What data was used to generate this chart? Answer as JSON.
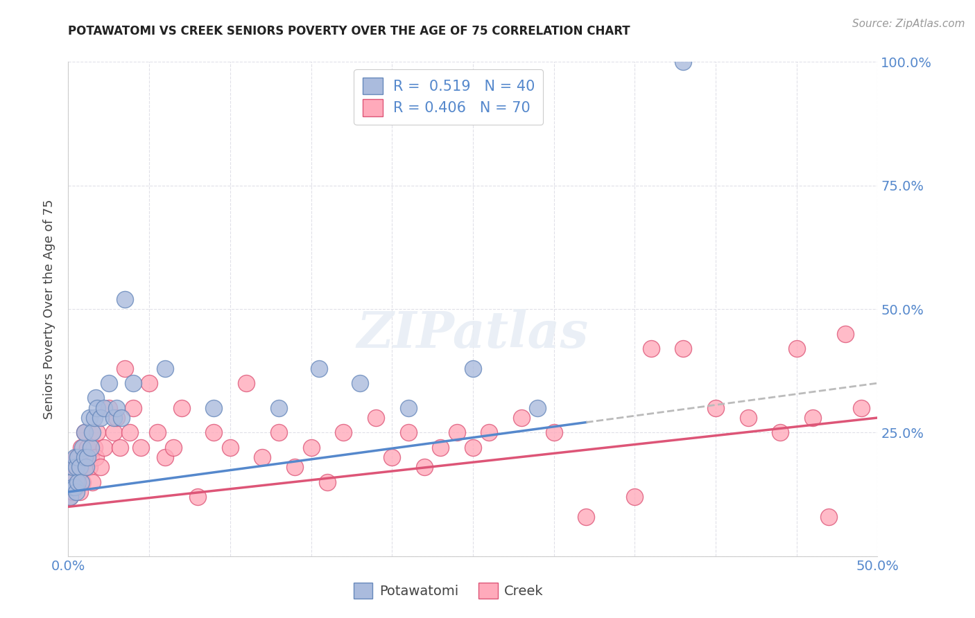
{
  "title": "POTAWATOMI VS CREEK SENIORS POVERTY OVER THE AGE OF 75 CORRELATION CHART",
  "source": "Source: ZipAtlas.com",
  "ylabel": "Seniors Poverty Over the Age of 75",
  "background_color": "#ffffff",
  "grid_color": "#e0e0e8",
  "potawatomi_color": "#aabbdd",
  "creek_color": "#ffaabb",
  "potawatomi_edge": "#6688bb",
  "creek_edge": "#dd5577",
  "trend_blue": "#5588cc",
  "trend_pink": "#dd5577",
  "trend_gray": "#bbbbbb",
  "R_potawatomi": 0.519,
  "N_potawatomi": 40,
  "R_creek": 0.406,
  "N_creek": 70,
  "xlim": [
    0.0,
    0.5
  ],
  "ylim": [
    0.0,
    1.0
  ],
  "potawatomi_x": [
    0.001,
    0.002,
    0.003,
    0.003,
    0.004,
    0.004,
    0.005,
    0.005,
    0.006,
    0.006,
    0.007,
    0.008,
    0.009,
    0.01,
    0.01,
    0.011,
    0.012,
    0.013,
    0.014,
    0.015,
    0.016,
    0.017,
    0.018,
    0.02,
    0.022,
    0.025,
    0.028,
    0.03,
    0.033,
    0.035,
    0.04,
    0.06,
    0.09,
    0.13,
    0.155,
    0.18,
    0.21,
    0.25,
    0.29,
    0.38
  ],
  "potawatomi_y": [
    0.12,
    0.15,
    0.14,
    0.18,
    0.14,
    0.2,
    0.13,
    0.18,
    0.15,
    0.2,
    0.18,
    0.15,
    0.22,
    0.2,
    0.25,
    0.18,
    0.2,
    0.28,
    0.22,
    0.25,
    0.28,
    0.32,
    0.3,
    0.28,
    0.3,
    0.35,
    0.28,
    0.3,
    0.28,
    0.52,
    0.35,
    0.38,
    0.3,
    0.3,
    0.38,
    0.35,
    0.3,
    0.38,
    0.3,
    1.0
  ],
  "creek_x": [
    0.001,
    0.002,
    0.003,
    0.004,
    0.005,
    0.005,
    0.006,
    0.006,
    0.007,
    0.007,
    0.008,
    0.008,
    0.009,
    0.01,
    0.01,
    0.011,
    0.012,
    0.013,
    0.014,
    0.015,
    0.016,
    0.017,
    0.018,
    0.02,
    0.022,
    0.025,
    0.028,
    0.03,
    0.032,
    0.035,
    0.038,
    0.04,
    0.045,
    0.05,
    0.055,
    0.06,
    0.065,
    0.07,
    0.08,
    0.09,
    0.1,
    0.11,
    0.12,
    0.13,
    0.14,
    0.15,
    0.16,
    0.17,
    0.19,
    0.2,
    0.21,
    0.22,
    0.23,
    0.24,
    0.25,
    0.26,
    0.28,
    0.3,
    0.32,
    0.35,
    0.36,
    0.38,
    0.4,
    0.42,
    0.44,
    0.45,
    0.46,
    0.47,
    0.48,
    0.49
  ],
  "creek_y": [
    0.12,
    0.15,
    0.13,
    0.18,
    0.14,
    0.2,
    0.15,
    0.18,
    0.13,
    0.2,
    0.18,
    0.22,
    0.15,
    0.2,
    0.25,
    0.18,
    0.22,
    0.18,
    0.2,
    0.15,
    0.22,
    0.2,
    0.25,
    0.18,
    0.22,
    0.3,
    0.25,
    0.28,
    0.22,
    0.38,
    0.25,
    0.3,
    0.22,
    0.35,
    0.25,
    0.2,
    0.22,
    0.3,
    0.12,
    0.25,
    0.22,
    0.35,
    0.2,
    0.25,
    0.18,
    0.22,
    0.15,
    0.25,
    0.28,
    0.2,
    0.25,
    0.18,
    0.22,
    0.25,
    0.22,
    0.25,
    0.28,
    0.25,
    0.08,
    0.12,
    0.42,
    0.42,
    0.3,
    0.28,
    0.25,
    0.42,
    0.28,
    0.08,
    0.45,
    0.3
  ]
}
